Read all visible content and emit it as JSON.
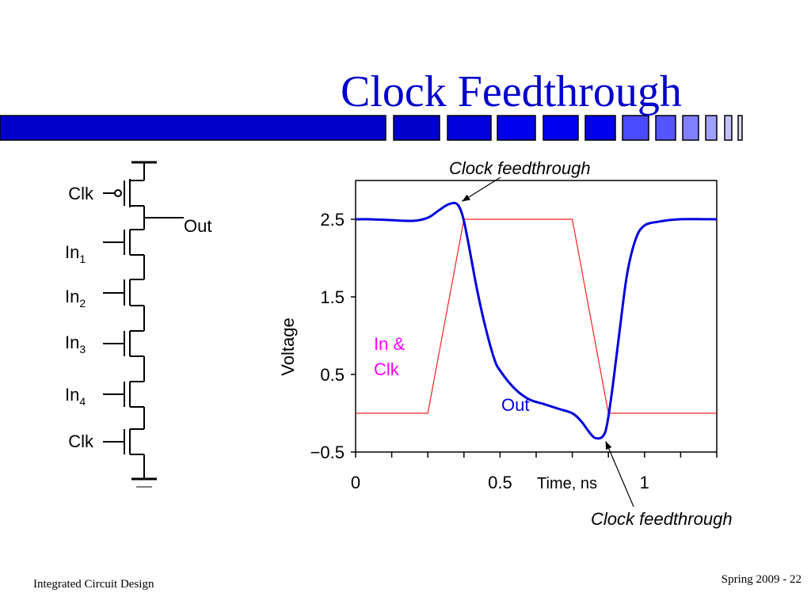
{
  "slide": {
    "title": "Clock Feedthrough",
    "footer_left": "Integrated Circuit Design",
    "footer_right": "Spring 2009 - 22"
  },
  "colors": {
    "title": "#0000cc",
    "deco_dark": "#0000cc",
    "deco_light": "#8080ff",
    "out_trace": "#0000dd",
    "clk_trace": "#ff2020",
    "in_clk_label": "#ff00ff"
  },
  "schematic": {
    "labels": {
      "clk_top": "Clk",
      "out": "Out",
      "in1_main": "In",
      "in1_sub": "1",
      "in2_main": "In",
      "in2_sub": "2",
      "in3_main": "In",
      "in3_sub": "3",
      "in4_main": "In",
      "in4_sub": "4",
      "clk_bottom": "Clk"
    }
  },
  "chart_data": {
    "type": "line",
    "xlabel": "Time, ns",
    "ylabel": "Voltage",
    "xlim": [
      0,
      1.25
    ],
    "ylim": [
      -0.5,
      3.0
    ],
    "x_tick_labels": [
      {
        "value": 0,
        "label": "0"
      },
      {
        "value": 0.5,
        "label": "0.5"
      },
      {
        "value": 1,
        "label": "1"
      }
    ],
    "x_minor_ticks": [
      0.125,
      0.25,
      0.375,
      0.625,
      0.75,
      0.875,
      1.125,
      1.25
    ],
    "y_ticks": [
      {
        "value": 2.5,
        "label": "2.5"
      },
      {
        "value": 1.5,
        "label": "1.5"
      },
      {
        "value": 0.5,
        "label": "0.5"
      },
      {
        "value": -0.5,
        "label": "−0.5"
      }
    ],
    "series": [
      {
        "name": "Out",
        "color": "#0000dd",
        "points": [
          [
            0.0,
            2.5
          ],
          [
            0.05,
            2.5
          ],
          [
            0.12,
            2.49
          ],
          [
            0.2,
            2.48
          ],
          [
            0.25,
            2.52
          ],
          [
            0.29,
            2.62
          ],
          [
            0.32,
            2.69
          ],
          [
            0.35,
            2.7
          ],
          [
            0.37,
            2.55
          ],
          [
            0.39,
            2.2
          ],
          [
            0.42,
            1.6
          ],
          [
            0.45,
            1.1
          ],
          [
            0.48,
            0.7
          ],
          [
            0.5,
            0.55
          ],
          [
            0.55,
            0.32
          ],
          [
            0.6,
            0.18
          ],
          [
            0.65,
            0.12
          ],
          [
            0.7,
            0.06
          ],
          [
            0.75,
            0.0
          ],
          [
            0.78,
            -0.1
          ],
          [
            0.81,
            -0.25
          ],
          [
            0.83,
            -0.32
          ],
          [
            0.855,
            -0.3
          ],
          [
            0.87,
            -0.15
          ],
          [
            0.89,
            0.35
          ],
          [
            0.915,
            1.1
          ],
          [
            0.94,
            1.8
          ],
          [
            0.97,
            2.25
          ],
          [
            1.0,
            2.42
          ],
          [
            1.05,
            2.47
          ],
          [
            1.12,
            2.5
          ],
          [
            1.25,
            2.5
          ]
        ]
      },
      {
        "name": "In & Clk",
        "color": "#ff2020",
        "points": [
          [
            0.0,
            0.0
          ],
          [
            0.25,
            0.0
          ],
          [
            0.375,
            2.5
          ],
          [
            0.75,
            2.5
          ],
          [
            0.875,
            0.0
          ],
          [
            1.25,
            0.0
          ]
        ]
      }
    ],
    "annotations": {
      "in_clk_line1": "In &",
      "in_clk_line2": "Clk",
      "out_label": "Out",
      "feedthrough_top": "Clock feedthrough",
      "feedthrough_bottom": "Clock feedthrough"
    },
    "annotation_targets": {
      "top": [
        0.36,
        2.7
      ],
      "bottom": [
        0.86,
        -0.32
      ]
    }
  }
}
